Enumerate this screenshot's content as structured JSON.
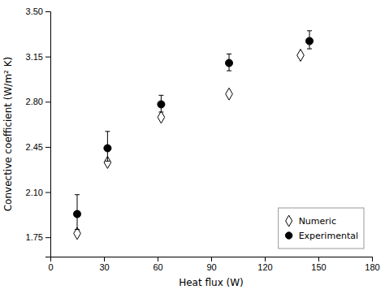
{
  "chart_data": {
    "type": "scatter",
    "xlabel": "Heat flux (W)",
    "ylabel": "Convective coefficient (W/m² K)",
    "xlim": [
      0,
      180
    ],
    "ylim": [
      1.6,
      3.5
    ],
    "xticks": [
      0,
      30,
      60,
      90,
      120,
      150,
      180
    ],
    "yticks": [
      1.75,
      {
        "value": 2.1,
        "label": "2.10"
      },
      2.45,
      {
        "value": 2.8,
        "label": "2.80"
      },
      3.15,
      {
        "value": 3.5,
        "label": "3.50"
      }
    ],
    "grid": false,
    "legend": "lower right",
    "series": [
      {
        "name": "Numeric",
        "marker": "open-diamond",
        "color": "#000000",
        "x": [
          15,
          32,
          62,
          100,
          140
        ],
        "values": [
          1.78,
          2.33,
          2.68,
          2.86,
          3.16
        ]
      },
      {
        "name": "Experimental",
        "marker": "circle",
        "color": "#000000",
        "x": [
          15,
          32,
          62,
          100,
          145
        ],
        "values": [
          1.93,
          2.44,
          2.78,
          3.1,
          3.27
        ],
        "error_lower": [
          0.12,
          0.1,
          0.06,
          0.06,
          0.06
        ],
        "error_upper": [
          0.15,
          0.13,
          0.07,
          0.07,
          0.08
        ]
      }
    ]
  }
}
